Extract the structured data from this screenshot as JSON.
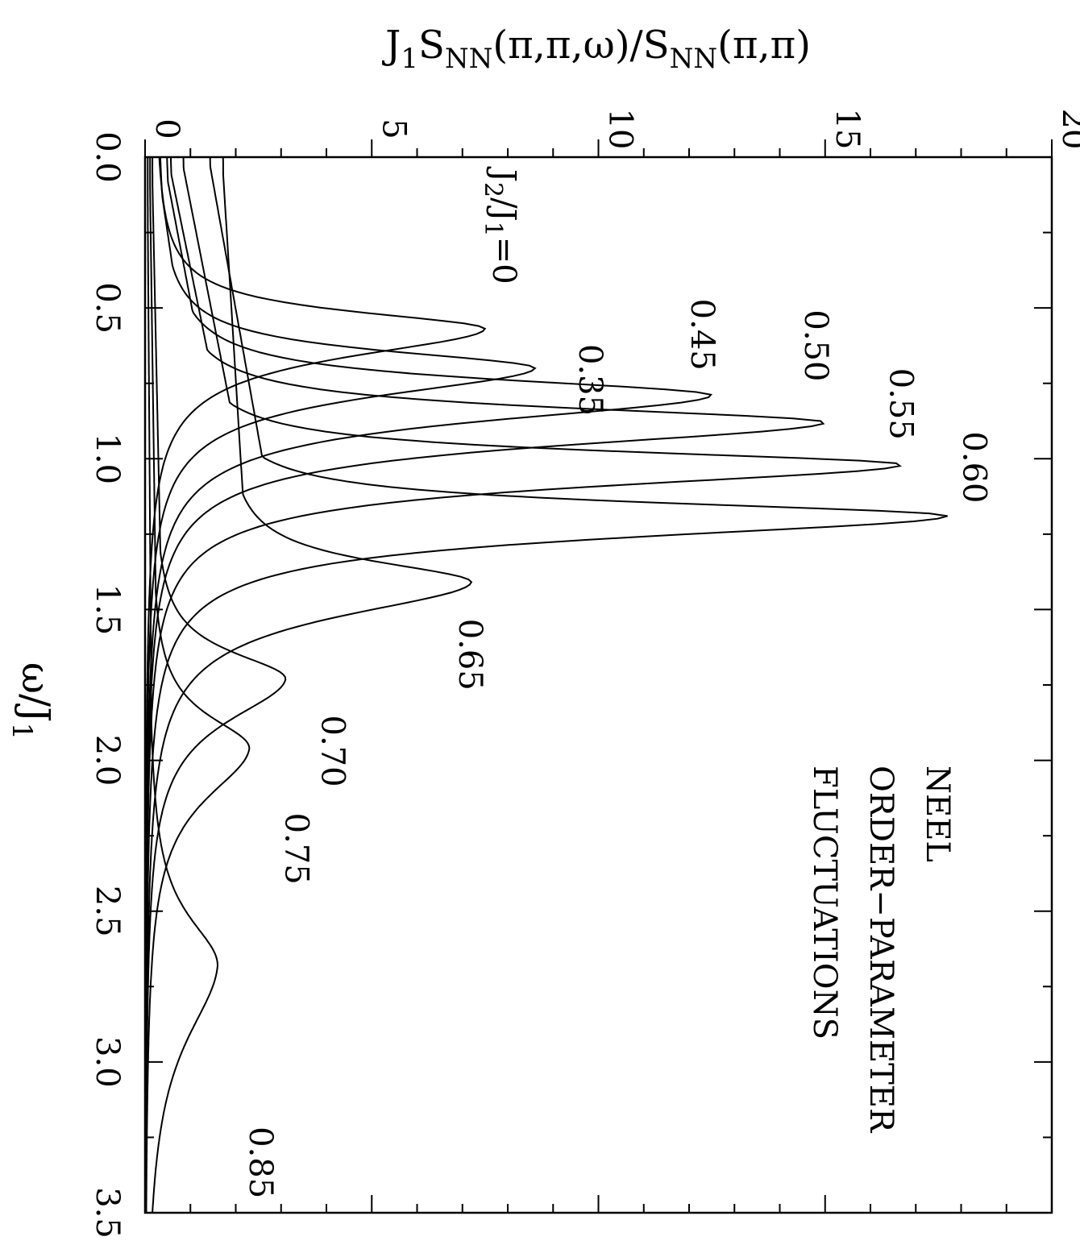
{
  "chart_data": {
    "type": "line",
    "ylabel": "J",
    "ylabel_parts": {
      "p1": "J",
      "p1_sub": "1",
      "p2": "S",
      "p2_sub": "NN",
      "p3": "(π,π,ω)/S",
      "p3_sub": "NN",
      "p4": "(π,π)"
    },
    "xlabel_parts": {
      "main": "ω/J",
      "sub": "1"
    },
    "xlim": [
      0,
      3.5
    ],
    "ylim": [
      0,
      20
    ],
    "x_ticks": [
      "0.0",
      "0.5",
      "1.0",
      "1.5",
      "2.0",
      "2.5",
      "3.0",
      "3.5"
    ],
    "y_ticks": [
      "0",
      "5",
      "10",
      "15",
      "20"
    ],
    "annotation_lines": [
      "NEEL",
      "ORDER−PARAMETER",
      "FLUCTUATIONS"
    ],
    "param_label": {
      "main": "J",
      "sub2": "2",
      "mid": "/J",
      "sub1": "1",
      "end": "=0"
    },
    "series": [
      {
        "label": "0",
        "p0": 0.2,
        "p1": 0.52,
        "peak_x": 0.57,
        "peak": 7.5,
        "sigma": 0.13
      },
      {
        "label": "0.35",
        "p0": 0.25,
        "p1": 0.62,
        "peak_x": 0.7,
        "peak": 8.6,
        "sigma": 0.13
      },
      {
        "label": "0.45",
        "p0": 0.4,
        "p1": 0.76,
        "peak_x": 0.79,
        "peak": 12.5,
        "sigma": 0.12
      },
      {
        "label": "0.50",
        "p0": 0.5,
        "p1": 0.86,
        "peak_x": 0.88,
        "peak": 15.0,
        "sigma": 0.11
      },
      {
        "label": "0.55",
        "p0": 0.8,
        "p1": 0.99,
        "peak_x": 1.02,
        "peak": 16.7,
        "sigma": 0.1
      },
      {
        "label": "0.60",
        "p0": 1.4,
        "p1": 1.17,
        "peak_x": 1.19,
        "peak": 17.7,
        "sigma": 0.1
      },
      {
        "label": "0.65",
        "p0": 1.7,
        "p1": 1.38,
        "peak_x": 1.41,
        "peak": 7.2,
        "sigma": 0.16
      },
      {
        "label": "0.70",
        "p0": 0.15,
        "p1": 1.7,
        "peak_x": 1.73,
        "peak": 3.1,
        "sigma": 0.2
      },
      {
        "label": "0.75",
        "p0": 0.1,
        "p1": 1.93,
        "peak_x": 1.96,
        "peak": 2.3,
        "sigma": 0.24
      },
      {
        "label": "0.85",
        "p0": 0.05,
        "p1": 2.65,
        "peak_x": 2.68,
        "peak": 1.6,
        "sigma": 0.36
      }
    ]
  }
}
